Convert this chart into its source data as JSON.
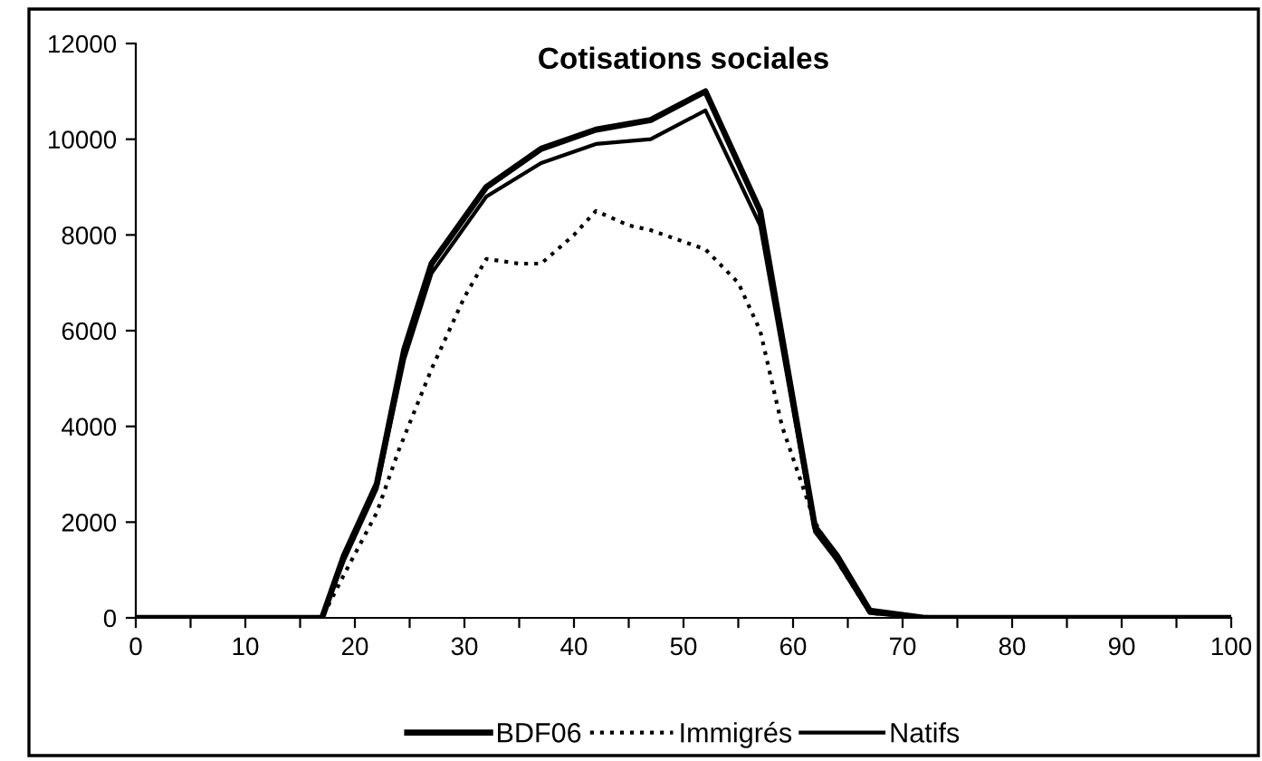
{
  "chart_data": {
    "type": "line",
    "title": "Cotisations sociales",
    "xlim": [
      0,
      100
    ],
    "ylim": [
      0,
      12000
    ],
    "xticks": [
      0,
      {
        "value": 5,
        "label": null
      },
      10,
      {
        "value": 15,
        "label": null
      },
      20,
      {
        "value": 25,
        "label": null
      },
      30,
      {
        "value": 35,
        "label": null
      },
      40,
      {
        "value": 45,
        "label": null
      },
      50,
      {
        "value": 55,
        "label": null
      },
      60,
      {
        "value": 65,
        "label": null
      },
      70,
      {
        "value": 75,
        "label": null
      },
      80,
      {
        "value": 85,
        "label": null
      },
      90,
      {
        "value": 95,
        "label": null
      },
      100
    ],
    "yticks": [
      0,
      2000,
      4000,
      6000,
      8000,
      10000,
      12000
    ],
    "grid": false,
    "legend": "bottom",
    "series": [
      {
        "name": "BDF06",
        "color": "#000000",
        "line_style": "solid",
        "x": [
          0,
          17,
          19,
          22,
          24.5,
          27,
          32,
          37,
          42,
          47,
          52,
          57,
          62,
          64,
          67,
          72,
          100
        ],
        "values": [
          0,
          0,
          1300,
          2800,
          5600,
          7400,
          9000,
          9800,
          10200,
          10400,
          11000,
          8500,
          1900,
          1300,
          150,
          0,
          0
        ]
      },
      {
        "name": "Immigrés",
        "color": "#000000",
        "line_style": "dotted",
        "x": [
          0,
          17,
          19,
          22,
          24,
          27,
          30,
          32,
          35,
          37,
          40,
          42,
          45,
          47,
          52,
          55,
          57,
          59,
          62,
          64,
          67,
          70,
          72,
          100
        ],
        "values": [
          0,
          0,
          900,
          2200,
          3500,
          5200,
          6700,
          7500,
          7400,
          7400,
          8000,
          8500,
          8200,
          8100,
          7700,
          7000,
          6000,
          4000,
          2000,
          1200,
          100,
          50,
          20,
          0
        ]
      },
      {
        "name": "Natifs",
        "color": "#000000",
        "line_style": "solid",
        "x": [
          0,
          17,
          19,
          22,
          24.5,
          27,
          32,
          37,
          42,
          47,
          52,
          57,
          62,
          64,
          67,
          72,
          100
        ],
        "values": [
          0,
          0,
          1200,
          2700,
          5400,
          7200,
          8800,
          9500,
          9900,
          10000,
          10600,
          8200,
          1800,
          1200,
          100,
          0,
          0
        ]
      }
    ]
  }
}
